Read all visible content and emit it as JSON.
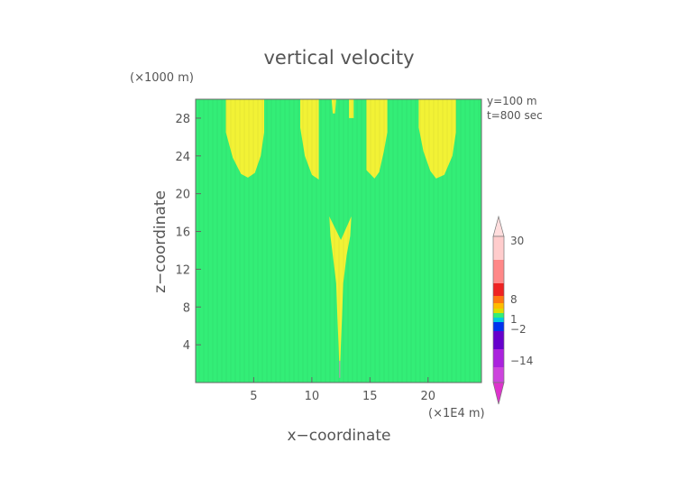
{
  "chart_data": {
    "type": "heatmap",
    "title": "vertical velocity",
    "xlabel": "x−coordinate",
    "ylabel": "z−coordinate",
    "x_unit": "(×1E4 m)",
    "y_unit": "(×1000 m)",
    "annotations": [
      "y=100 m",
      "t=800 sec"
    ],
    "x_ticks": [
      5,
      10,
      15,
      20
    ],
    "y_ticks": [
      4,
      8,
      12,
      16,
      20,
      24,
      28
    ],
    "xlim": [
      0,
      24.6
    ],
    "ylim": [
      0,
      30
    ],
    "grid": false,
    "background_level": "0 to 1",
    "background_color": "#33ee77",
    "regions": [
      {
        "name": "column-1",
        "level": "1 to 2",
        "color": "#f2f235",
        "outline": [
          [
            2.6,
            30
          ],
          [
            2.6,
            26.5
          ],
          [
            3.2,
            23.8
          ],
          [
            3.9,
            22.1
          ],
          [
            4.5,
            21.7
          ],
          [
            5.1,
            22.2
          ],
          [
            5.6,
            24
          ],
          [
            5.9,
            26.5
          ],
          [
            5.9,
            30
          ]
        ]
      },
      {
        "name": "column-2",
        "level": "1 to 2",
        "color": "#f2f235",
        "outline": [
          [
            9,
            30
          ],
          [
            9,
            27
          ],
          [
            9.4,
            24
          ],
          [
            10,
            22
          ],
          [
            10.6,
            21.5
          ],
          [
            10.6,
            30
          ]
        ]
      },
      {
        "name": "column-3",
        "level": "1 to 2",
        "color": "#f2f235",
        "outline": [
          [
            11.7,
            30
          ],
          [
            11.8,
            28.5
          ],
          [
            12,
            28.5
          ],
          [
            12.1,
            30
          ]
        ]
      },
      {
        "name": "column-4",
        "level": "1 to 2",
        "color": "#f2f235",
        "outline": [
          [
            13.2,
            30
          ],
          [
            13.2,
            28
          ],
          [
            13.6,
            28
          ],
          [
            13.6,
            30
          ]
        ]
      },
      {
        "name": "column-5",
        "level": "1 to 2",
        "color": "#f2f235",
        "outline": [
          [
            14.7,
            30
          ],
          [
            14.7,
            22.5
          ],
          [
            15.4,
            21.6
          ],
          [
            15.8,
            22.3
          ],
          [
            16.2,
            24.5
          ],
          [
            16.5,
            26.5
          ],
          [
            16.5,
            30
          ]
        ]
      },
      {
        "name": "column-6",
        "level": "1 to 2",
        "color": "#f2f235",
        "outline": [
          [
            19.2,
            30
          ],
          [
            19.2,
            27
          ],
          [
            19.6,
            24.5
          ],
          [
            20.2,
            22.4
          ],
          [
            20.7,
            21.6
          ],
          [
            21.4,
            22
          ],
          [
            22.1,
            24
          ],
          [
            22.4,
            26.5
          ],
          [
            22.4,
            30
          ]
        ]
      },
      {
        "name": "central-plume",
        "level": "1 to 2",
        "color": "#f2f235",
        "outline": [
          [
            11.5,
            17.6
          ],
          [
            12.5,
            15.1
          ],
          [
            13.4,
            17.6
          ],
          [
            13.3,
            15.5
          ],
          [
            13,
            13.5
          ],
          [
            12.7,
            10.5
          ],
          [
            12.6,
            7
          ],
          [
            12.5,
            4
          ],
          [
            12.4,
            0.5
          ],
          [
            12.3,
            4
          ],
          [
            12.2,
            7
          ],
          [
            12.1,
            10.5
          ],
          [
            11.8,
            13.5
          ],
          [
            11.6,
            15.5
          ]
        ]
      },
      {
        "name": "plume-core",
        "level": "2 to 8",
        "color": "#aaaaaa",
        "outline": [
          [
            12.35,
            0.5
          ],
          [
            12.45,
            0.5
          ],
          [
            12.45,
            2.3
          ],
          [
            12.35,
            2.3
          ]
        ]
      }
    ],
    "colorbar": {
      "levels": [
        "30",
        "8",
        "1",
        "−2",
        "−14"
      ],
      "bands": [
        {
          "color": "#ffcccc",
          "frac": 0.13
        },
        {
          "color": "#ff8888",
          "frac": 0.13
        },
        {
          "color": "#ee2222",
          "frac": 0.07
        },
        {
          "color": "#ff7711",
          "frac": 0.04
        },
        {
          "color": "#ffbb00",
          "frac": 0.03
        },
        {
          "color": "#dddd00",
          "frac": 0.025
        },
        {
          "color": "#33ee77",
          "frac": 0.025
        },
        {
          "color": "#00ccdd",
          "frac": 0.025
        },
        {
          "color": "#0033ee",
          "frac": 0.05
        },
        {
          "color": "#6600cc",
          "frac": 0.1
        },
        {
          "color": "#aa22dd",
          "frac": 0.1
        },
        {
          "color": "#cc44dd",
          "frac": 0.085
        }
      ],
      "top_color": "#ffdddd",
      "bottom_color": "#dd33cc"
    }
  }
}
